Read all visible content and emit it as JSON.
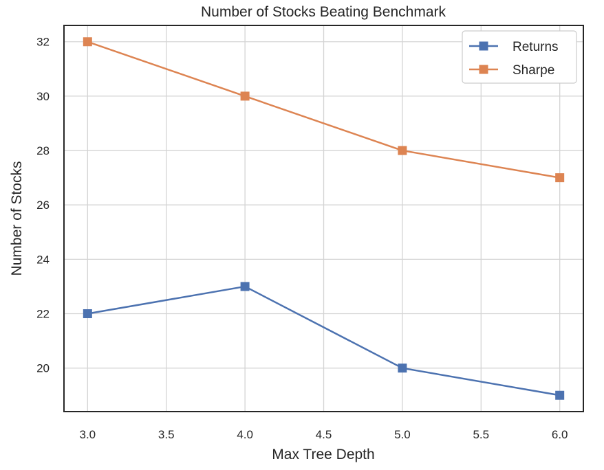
{
  "chart_data": {
    "type": "line",
    "title": "Number of Stocks Beating Benchmark",
    "xlabel": "Max Tree Depth",
    "ylabel": "Number of Stocks",
    "x": [
      3.0,
      4.0,
      5.0,
      6.0
    ],
    "xlim": [
      2.85,
      6.15
    ],
    "ylim": [
      18.4,
      32.6
    ],
    "xticks": [
      3.0,
      3.5,
      4.0,
      4.5,
      5.0,
      5.5,
      6.0
    ],
    "xtick_labels": [
      "3.0",
      "3.5",
      "4.0",
      "4.5",
      "5.0",
      "5.5",
      "6.0"
    ],
    "yticks": [
      20,
      22,
      24,
      26,
      28,
      30,
      32
    ],
    "ytick_labels": [
      "20",
      "22",
      "24",
      "26",
      "28",
      "30",
      "32"
    ],
    "grid": true,
    "legend_position": "top-right",
    "marker": "square",
    "series": [
      {
        "name": "Returns",
        "color": "#4c72b0",
        "values": [
          22,
          23,
          20,
          19
        ]
      },
      {
        "name": "Sharpe",
        "color": "#dd8452",
        "values": [
          32,
          30,
          28,
          27
        ]
      }
    ]
  }
}
